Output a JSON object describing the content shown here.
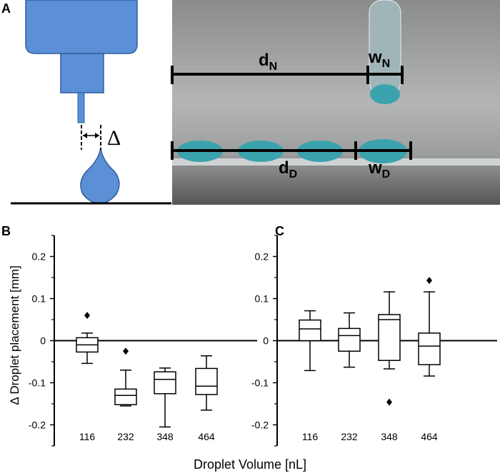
{
  "panel_labels": [
    "A",
    "B",
    "C"
  ],
  "diagram": {
    "gap_label": "Δ"
  },
  "photo": {
    "labels": [
      {
        "main": "d",
        "sub": "N"
      },
      {
        "main": "w",
        "sub": "N"
      },
      {
        "main": "d",
        "sub": "D"
      },
      {
        "main": "w",
        "sub": "D"
      }
    ]
  },
  "xlabel": "Droplet Volume [nL]",
  "chart_data": [
    {
      "type": "box",
      "ylabel": "Δ Droplet placement [mm]",
      "categories": [
        "116",
        "232",
        "348",
        "464"
      ],
      "whisker_low": [
        -0.054,
        -0.155,
        -0.205,
        -0.165
      ],
      "q1": [
        -0.027,
        -0.152,
        -0.126,
        -0.128
      ],
      "median": [
        -0.01,
        -0.13,
        -0.092,
        -0.108
      ],
      "q3": [
        0.007,
        -0.115,
        -0.074,
        -0.066
      ],
      "whisker_high": [
        0.018,
        -0.07,
        -0.065,
        -0.036
      ],
      "outliers": [
        [
          0.06
        ],
        [
          -0.025
        ],
        null,
        null
      ],
      "ylim": [
        -0.25,
        0.25
      ],
      "yticks": [
        -0.2,
        -0.1,
        0,
        0.1,
        0.2
      ],
      "yticks_minor": [
        -0.25,
        -0.15,
        -0.05,
        0.05,
        0.15,
        0.25
      ],
      "zero_line": true
    },
    {
      "type": "box",
      "categories": [
        "116",
        "232",
        "348",
        "464"
      ],
      "whisker_low": [
        -0.071,
        -0.063,
        -0.067,
        -0.084
      ],
      "q1": [
        0.0,
        -0.025,
        -0.047,
        -0.057
      ],
      "median": [
        0.028,
        0.012,
        0.05,
        -0.013
      ],
      "q3": [
        0.049,
        0.029,
        0.062,
        0.018
      ],
      "whisker_high": [
        0.071,
        0.066,
        0.116,
        0.116
      ],
      "outliers": [
        null,
        null,
        [
          -0.146
        ],
        [
          0.143
        ]
      ],
      "ylim": [
        -0.25,
        0.25
      ],
      "yticks": [
        -0.2,
        -0.1,
        0,
        0.1,
        0.2
      ],
      "yticks_minor": [
        -0.25,
        -0.15,
        -0.05,
        0.05,
        0.15,
        0.25
      ],
      "zero_line": true
    }
  ]
}
